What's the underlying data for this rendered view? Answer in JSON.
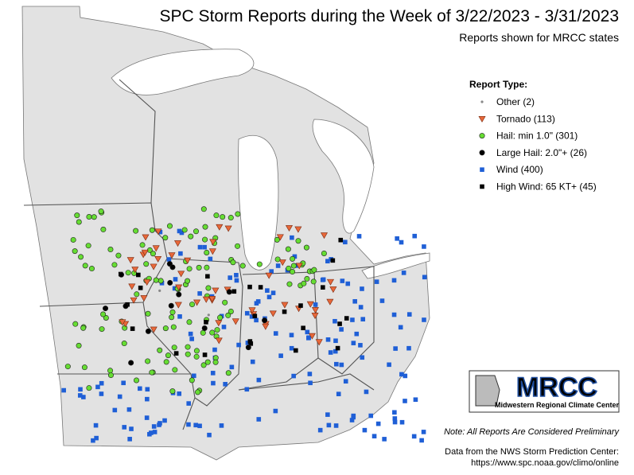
{
  "header": {
    "title": "SPC Storm Reports during the Week of 3/22/2023 - 3/31/2023",
    "subtitle": "Reports shown for MRCC states"
  },
  "legend": {
    "title": "Report Type:",
    "items": [
      {
        "label": "Other (2)",
        "symbol": "dot",
        "color": "#888888"
      },
      {
        "label": "Tornado (113)",
        "symbol": "triangle",
        "color": "#e8683a"
      },
      {
        "label": "Hail: min 1.0\" (301)",
        "symbol": "circle",
        "color": "#66dd33"
      },
      {
        "label": "Large Hail: 2.0\"+ (26)",
        "symbol": "circle",
        "color": "#000000"
      },
      {
        "label": "Wind (400)",
        "symbol": "square",
        "color": "#1f5fd6"
      },
      {
        "label": "High Wind: 65 KT+ (45)",
        "symbol": "square",
        "color": "#000000"
      }
    ]
  },
  "logo": {
    "name": "MRCC",
    "full_name": "Midwestern Regional Climate Center"
  },
  "note": "Note: All Reports Are Considered Preliminary",
  "source": [
    "Data from the NWS Storm Prediction Center:",
    "https://www.spc.noaa.gov/climo/online"
  ]
}
